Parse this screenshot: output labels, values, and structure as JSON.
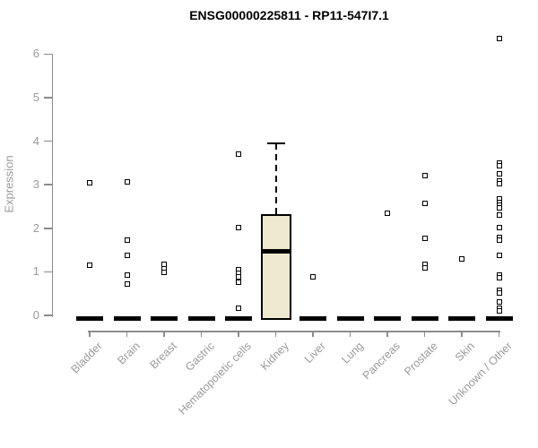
{
  "chart_data": {
    "type": "boxplot",
    "title": "ENSG00000225811 - RP11-547I7.1",
    "ylabel": "Expression",
    "xlabel": "",
    "ylim": [
      0,
      6.5
    ],
    "yticks": [
      0,
      1,
      2,
      3,
      4,
      5,
      6
    ],
    "grid": false,
    "legend": "none",
    "axis_color": "#8c8c8c",
    "label_color": "#9a9a9a",
    "box_fill": "#ede8ce",
    "box_stroke": "#000000",
    "categories": [
      "Bladder",
      "Brain",
      "Breast",
      "Gastric",
      "Hematopoietic cells",
      "Kidney",
      "Liver",
      "Lung",
      "Pancreas",
      "Prostate",
      "Skin",
      "Unknown / Other"
    ],
    "groups": [
      {
        "label": "Bladder",
        "median": 0,
        "points": [
          3.05,
          1.15
        ]
      },
      {
        "label": "Brain",
        "median": 0,
        "points": [
          3.07,
          1.72,
          1.37,
          0.93,
          0.73
        ]
      },
      {
        "label": "Breast",
        "median": 0,
        "points": [
          1.17,
          1.08,
          0.98
        ]
      },
      {
        "label": "Gastric",
        "median": 0,
        "points": []
      },
      {
        "label": "Hematopoietic cells",
        "median": 0,
        "points": [
          3.7,
          2.02,
          1.04,
          0.96,
          0.89,
          0.76,
          0.16
        ]
      },
      {
        "label": "Kidney",
        "box": {
          "q1": 0,
          "median": 1.47,
          "q3": 2.32,
          "whisker_high": 3.95
        },
        "points": []
      },
      {
        "label": "Liver",
        "median": 0,
        "points": [
          0.89
        ]
      },
      {
        "label": "Lung",
        "median": 0,
        "points": []
      },
      {
        "label": "Pancreas",
        "median": 0,
        "points": [
          2.35
        ]
      },
      {
        "label": "Prostate",
        "median": 0,
        "points": [
          3.22,
          2.57,
          1.76,
          1.17,
          1.1
        ]
      },
      {
        "label": "Skin",
        "median": 0,
        "points": [
          1.3
        ]
      },
      {
        "label": "Unknown / Other",
        "median": 0,
        "points": [
          6.36,
          3.49,
          3.43,
          3.26,
          3.09,
          3.02,
          2.67,
          2.6,
          2.54,
          2.47,
          2.3,
          2.02,
          1.78,
          1.72,
          1.37,
          0.93,
          0.86,
          0.58,
          0.51,
          0.31,
          0.17,
          0.1
        ]
      }
    ]
  }
}
